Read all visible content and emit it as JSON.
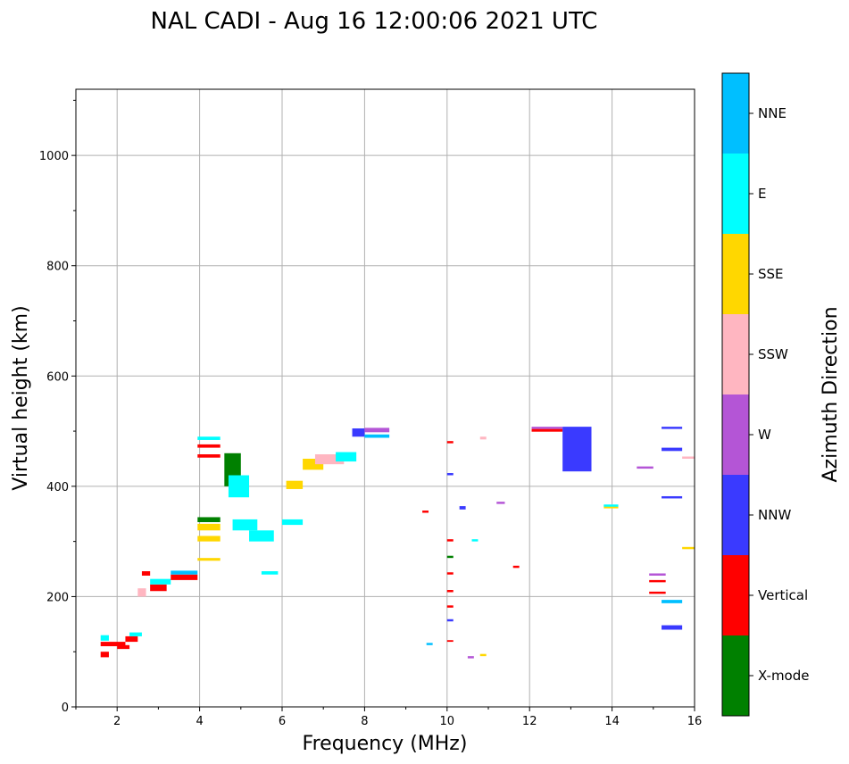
{
  "chart_data": {
    "type": "scatter",
    "title": "NAL CADI - Aug 16 12:00:06 2021 UTC",
    "xlabel": "Frequency (MHz)",
    "ylabel": "Virtual height (km)",
    "xlim": [
      1,
      16
    ],
    "ylim": [
      0,
      1120
    ],
    "xticks": [
      2,
      4,
      6,
      8,
      10,
      12,
      14,
      16
    ],
    "yticks": [
      0,
      200,
      400,
      600,
      800,
      1000
    ],
    "grid": true,
    "colorbar": {
      "label": "Azimuth Direction",
      "categories": [
        {
          "name": "X-mode",
          "color": "#008000"
        },
        {
          "name": "Vertical",
          "color": "#ff0000"
        },
        {
          "name": "NNW",
          "color": "#3a3aff"
        },
        {
          "name": "W",
          "color": "#b455d6"
        },
        {
          "name": "SSW",
          "color": "#ffb6c1"
        },
        {
          "name": "SSE",
          "color": "#ffd700"
        },
        {
          "name": "E",
          "color": "#00ffff"
        },
        {
          "name": "NNE",
          "color": "#00bfff"
        }
      ]
    },
    "echoes": [
      {
        "f0": 1.6,
        "f1": 2.2,
        "h0": 110,
        "h1": 118,
        "dir": "Vertical"
      },
      {
        "f0": 1.6,
        "f1": 1.8,
        "h0": 90,
        "h1": 100,
        "dir": "Vertical"
      },
      {
        "f0": 1.6,
        "f1": 1.8,
        "h0": 120,
        "h1": 130,
        "dir": "E"
      },
      {
        "f0": 2.0,
        "f1": 2.3,
        "h0": 105,
        "h1": 112,
        "dir": "Vertical"
      },
      {
        "f0": 2.2,
        "f1": 2.5,
        "h0": 118,
        "h1": 128,
        "dir": "Vertical"
      },
      {
        "f0": 2.3,
        "f1": 2.6,
        "h0": 128,
        "h1": 135,
        "dir": "E"
      },
      {
        "f0": 2.5,
        "f1": 2.7,
        "h0": 200,
        "h1": 215,
        "dir": "SSW"
      },
      {
        "f0": 2.6,
        "f1": 2.8,
        "h0": 238,
        "h1": 246,
        "dir": "Vertical"
      },
      {
        "f0": 2.8,
        "f1": 3.2,
        "h0": 210,
        "h1": 222,
        "dir": "Vertical"
      },
      {
        "f0": 2.8,
        "f1": 3.3,
        "h0": 222,
        "h1": 232,
        "dir": "E"
      },
      {
        "f0": 3.3,
        "f1": 3.95,
        "h0": 230,
        "h1": 240,
        "dir": "Vertical"
      },
      {
        "f0": 3.3,
        "f1": 3.95,
        "h0": 240,
        "h1": 247,
        "dir": "NNE"
      },
      {
        "f0": 3.95,
        "f1": 4.5,
        "h0": 335,
        "h1": 344,
        "dir": "X-mode"
      },
      {
        "f0": 3.95,
        "f1": 4.5,
        "h0": 320,
        "h1": 332,
        "dir": "SSE"
      },
      {
        "f0": 3.95,
        "f1": 4.5,
        "h0": 300,
        "h1": 310,
        "dir": "SSE"
      },
      {
        "f0": 3.95,
        "f1": 4.5,
        "h0": 265,
        "h1": 270,
        "dir": "SSE"
      },
      {
        "f0": 3.95,
        "f1": 4.5,
        "h0": 484,
        "h1": 490,
        "dir": "E"
      },
      {
        "f0": 3.95,
        "f1": 4.5,
        "h0": 470,
        "h1": 476,
        "dir": "Vertical"
      },
      {
        "f0": 3.95,
        "f1": 4.5,
        "h0": 452,
        "h1": 458,
        "dir": "Vertical"
      },
      {
        "f0": 4.6,
        "f1": 5.0,
        "h0": 400,
        "h1": 460,
        "dir": "X-mode"
      },
      {
        "f0": 4.7,
        "f1": 5.2,
        "h0": 380,
        "h1": 420,
        "dir": "E"
      },
      {
        "f0": 4.8,
        "f1": 5.4,
        "h0": 320,
        "h1": 340,
        "dir": "E"
      },
      {
        "f0": 5.2,
        "f1": 5.8,
        "h0": 300,
        "h1": 320,
        "dir": "E"
      },
      {
        "f0": 5.5,
        "f1": 5.9,
        "h0": 240,
        "h1": 246,
        "dir": "E"
      },
      {
        "f0": 6.0,
        "f1": 6.5,
        "h0": 330,
        "h1": 340,
        "dir": "E"
      },
      {
        "f0": 6.1,
        "f1": 6.5,
        "h0": 395,
        "h1": 410,
        "dir": "SSE"
      },
      {
        "f0": 6.5,
        "f1": 7.0,
        "h0": 430,
        "h1": 450,
        "dir": "SSE"
      },
      {
        "f0": 6.8,
        "f1": 7.5,
        "h0": 440,
        "h1": 458,
        "dir": "SSW"
      },
      {
        "f0": 7.3,
        "f1": 7.8,
        "h0": 445,
        "h1": 462,
        "dir": "E"
      },
      {
        "f0": 7.7,
        "f1": 8.0,
        "h0": 490,
        "h1": 505,
        "dir": "NNW"
      },
      {
        "f0": 8.0,
        "f1": 8.6,
        "h0": 498,
        "h1": 506,
        "dir": "W"
      },
      {
        "f0": 8.0,
        "f1": 8.6,
        "h0": 488,
        "h1": 494,
        "dir": "NNE"
      },
      {
        "f0": 10.0,
        "f1": 10.15,
        "h0": 270,
        "h1": 274,
        "dir": "X-mode"
      },
      {
        "f0": 10.0,
        "f1": 10.15,
        "h0": 300,
        "h1": 304,
        "dir": "Vertical"
      },
      {
        "f0": 10.0,
        "f1": 10.15,
        "h0": 240,
        "h1": 244,
        "dir": "Vertical"
      },
      {
        "f0": 10.0,
        "f1": 10.15,
        "h0": 208,
        "h1": 212,
        "dir": "Vertical"
      },
      {
        "f0": 10.0,
        "f1": 10.15,
        "h0": 180,
        "h1": 184,
        "dir": "Vertical"
      },
      {
        "f0": 9.4,
        "f1": 9.55,
        "h0": 352,
        "h1": 356,
        "dir": "Vertical"
      },
      {
        "f0": 10.6,
        "f1": 10.75,
        "h0": 300,
        "h1": 304,
        "dir": "E"
      },
      {
        "f0": 11.2,
        "f1": 11.4,
        "h0": 368,
        "h1": 372,
        "dir": "W"
      },
      {
        "f0": 11.6,
        "f1": 11.75,
        "h0": 252,
        "h1": 256,
        "dir": "Vertical"
      },
      {
        "f0": 12.05,
        "f1": 12.8,
        "h0": 499,
        "h1": 504,
        "dir": "Vertical"
      },
      {
        "f0": 12.05,
        "f1": 12.8,
        "h0": 504,
        "h1": 508,
        "dir": "W"
      },
      {
        "f0": 12.8,
        "f1": 13.5,
        "h0": 427,
        "h1": 508,
        "dir": "NNW"
      },
      {
        "f0": 13.8,
        "f1": 14.15,
        "h0": 360,
        "h1": 366,
        "dir": "SSE"
      },
      {
        "f0": 13.8,
        "f1": 14.15,
        "h0": 363,
        "h1": 367,
        "dir": "E"
      },
      {
        "f0": 14.6,
        "f1": 15.0,
        "h0": 432,
        "h1": 436,
        "dir": "W"
      },
      {
        "f0": 14.9,
        "f1": 15.3,
        "h0": 238,
        "h1": 242,
        "dir": "W"
      },
      {
        "f0": 14.9,
        "f1": 15.3,
        "h0": 226,
        "h1": 230,
        "dir": "Vertical"
      },
      {
        "f0": 14.9,
        "f1": 15.3,
        "h0": 205,
        "h1": 209,
        "dir": "Vertical"
      },
      {
        "f0": 15.2,
        "f1": 15.7,
        "h0": 504,
        "h1": 508,
        "dir": "NNW"
      },
      {
        "f0": 15.2,
        "f1": 15.7,
        "h0": 464,
        "h1": 470,
        "dir": "NNW"
      },
      {
        "f0": 15.2,
        "f1": 15.7,
        "h0": 378,
        "h1": 382,
        "dir": "NNW"
      },
      {
        "f0": 15.2,
        "f1": 15.7,
        "h0": 188,
        "h1": 194,
        "dir": "NNE"
      },
      {
        "f0": 15.2,
        "f1": 15.7,
        "h0": 140,
        "h1": 148,
        "dir": "NNW"
      },
      {
        "f0": 15.7,
        "f1": 16.0,
        "h0": 286,
        "h1": 290,
        "dir": "SSE"
      },
      {
        "f0": 15.7,
        "f1": 16.0,
        "h0": 450,
        "h1": 454,
        "dir": "SSW"
      },
      {
        "f0": 9.5,
        "f1": 9.65,
        "h0": 112,
        "h1": 116,
        "dir": "NNE"
      },
      {
        "f0": 10.0,
        "f1": 10.15,
        "h0": 155,
        "h1": 159,
        "dir": "NNW"
      },
      {
        "f0": 10.0,
        "f1": 10.15,
        "h0": 118,
        "h1": 121,
        "dir": "Vertical"
      },
      {
        "f0": 10.5,
        "f1": 10.65,
        "h0": 88,
        "h1": 92,
        "dir": "W"
      },
      {
        "f0": 10.8,
        "f1": 10.95,
        "h0": 92,
        "h1": 96,
        "dir": "SSE"
      },
      {
        "f0": 10.8,
        "f1": 10.95,
        "h0": 485,
        "h1": 490,
        "dir": "SSW"
      },
      {
        "f0": 10.0,
        "f1": 10.15,
        "h0": 478,
        "h1": 482,
        "dir": "Vertical"
      },
      {
        "f0": 10.0,
        "f1": 10.15,
        "h0": 420,
        "h1": 424,
        "dir": "NNW"
      },
      {
        "f0": 10.3,
        "f1": 10.45,
        "h0": 358,
        "h1": 364,
        "dir": "NNW"
      }
    ]
  }
}
